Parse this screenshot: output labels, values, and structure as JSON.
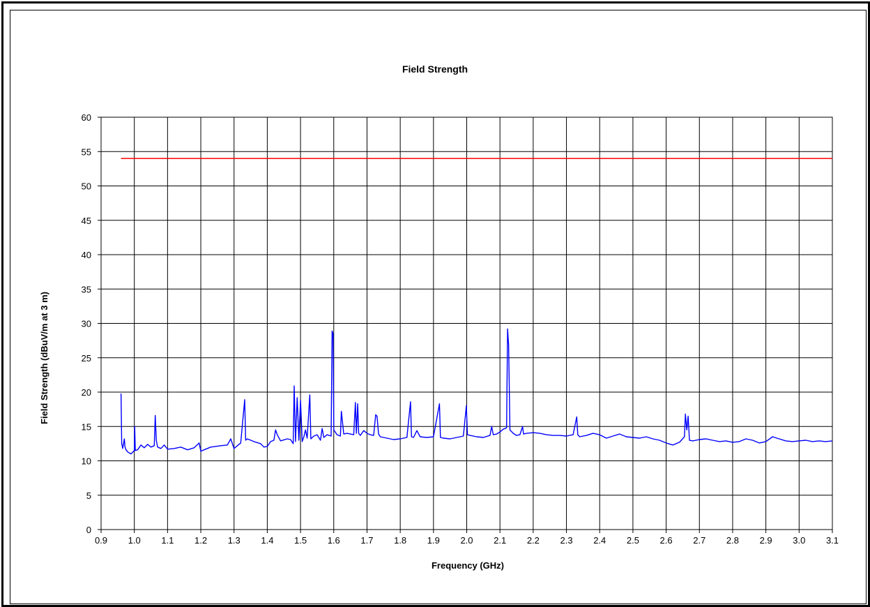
{
  "chart_data": {
    "type": "line",
    "title": "Field Strength",
    "xlabel": "Frequency (GHz)",
    "ylabel": "Field Strength (dBuV/m at 3 m)",
    "xlim": [
      0.9,
      3.1
    ],
    "ylim": [
      0,
      60
    ],
    "x_ticks": [
      "0.9",
      "1.0",
      "1.1",
      "1.2",
      "1.3",
      "1.4",
      "1.5",
      "1.6",
      "1.7",
      "1.8",
      "1.9",
      "2.0",
      "2.1",
      "2.2",
      "2.3",
      "2.4",
      "2.5",
      "2.6",
      "2.7",
      "2.8",
      "2.9",
      "3.0",
      "3.1"
    ],
    "y_ticks": [
      "0",
      "5",
      "10",
      "15",
      "20",
      "25",
      "30",
      "35",
      "40",
      "45",
      "50",
      "55",
      "60"
    ],
    "grid": true,
    "legend": "none",
    "colors": {
      "limit": "#ff0000",
      "measurement": "#0000ff"
    },
    "series": [
      {
        "role": "limit",
        "x": [
          0.96,
          3.1
        ],
        "y": [
          54,
          54
        ]
      },
      {
        "role": "measurement",
        "x": [
          0.96,
          0.962,
          0.965,
          0.97,
          0.972,
          0.975,
          0.98,
          0.99,
          1.0,
          1.001,
          1.003,
          1.01,
          1.02,
          1.03,
          1.04,
          1.05,
          1.06,
          1.063,
          1.066,
          1.07,
          1.08,
          1.09,
          1.1,
          1.12,
          1.14,
          1.16,
          1.18,
          1.195,
          1.2,
          1.21,
          1.23,
          1.26,
          1.28,
          1.29,
          1.3,
          1.31,
          1.32,
          1.328,
          1.332,
          1.335,
          1.34,
          1.36,
          1.38,
          1.39,
          1.4,
          1.41,
          1.42,
          1.425,
          1.43,
          1.44,
          1.46,
          1.47,
          1.478,
          1.481,
          1.485,
          1.49,
          1.495,
          1.5,
          1.505,
          1.51,
          1.515,
          1.52,
          1.528,
          1.531,
          1.54,
          1.55,
          1.56,
          1.565,
          1.57,
          1.58,
          1.592,
          1.595,
          1.598,
          1.6,
          1.61,
          1.62,
          1.623,
          1.63,
          1.64,
          1.65,
          1.66,
          1.665,
          1.668,
          1.672,
          1.675,
          1.68,
          1.69,
          1.7,
          1.71,
          1.72,
          1.726,
          1.73,
          1.735,
          1.74,
          1.76,
          1.78,
          1.8,
          1.82,
          1.831,
          1.834,
          1.84,
          1.85,
          1.86,
          1.88,
          1.9,
          1.918,
          1.921,
          1.93,
          1.95,
          1.97,
          1.99,
          1.999,
          2.002,
          2.01,
          2.03,
          2.05,
          2.07,
          2.075,
          2.08,
          2.09,
          2.1,
          2.11,
          2.12,
          2.123,
          2.126,
          2.13,
          2.14,
          2.15,
          2.16,
          2.168,
          2.171,
          2.18,
          2.2,
          2.22,
          2.24,
          2.26,
          2.28,
          2.3,
          2.32,
          2.331,
          2.334,
          2.34,
          2.36,
          2.38,
          2.4,
          2.42,
          2.44,
          2.46,
          2.48,
          2.5,
          2.52,
          2.54,
          2.56,
          2.58,
          2.6,
          2.62,
          2.64,
          2.655,
          2.658,
          2.662,
          2.666,
          2.67,
          2.68,
          2.7,
          2.72,
          2.74,
          2.76,
          2.78,
          2.8,
          2.82,
          2.84,
          2.86,
          2.88,
          2.9,
          2.92,
          2.94,
          2.96,
          2.98,
          3.0,
          3.02,
          3.04,
          3.06,
          3.08,
          3.1
        ],
        "y": [
          19.8,
          12.5,
          11.8,
          13.2,
          12.0,
          11.6,
          11.3,
          11.0,
          11.5,
          15.0,
          11.5,
          11.6,
          12.3,
          11.9,
          12.4,
          12.0,
          12.2,
          16.6,
          13.0,
          12.0,
          11.8,
          12.3,
          11.7,
          11.8,
          12.0,
          11.6,
          11.9,
          12.6,
          11.4,
          11.6,
          12.0,
          12.2,
          12.3,
          13.2,
          11.8,
          12.2,
          12.6,
          16.8,
          18.9,
          13.0,
          13.2,
          12.8,
          12.5,
          12.0,
          12.1,
          12.8,
          13.0,
          14.5,
          13.8,
          12.9,
          13.2,
          13.1,
          12.5,
          20.9,
          12.8,
          19.2,
          13.0,
          18.8,
          12.8,
          13.5,
          14.5,
          13.3,
          19.6,
          13.2,
          13.6,
          13.8,
          13.0,
          14.7,
          13.4,
          13.8,
          13.6,
          28.9,
          28.5,
          14.5,
          13.8,
          13.6,
          17.2,
          13.9,
          14.0,
          13.9,
          13.8,
          18.5,
          14.0,
          18.3,
          14.0,
          13.7,
          14.4,
          14.0,
          13.8,
          13.7,
          16.7,
          16.5,
          13.9,
          13.5,
          13.3,
          13.1,
          13.2,
          13.4,
          18.6,
          13.5,
          13.4,
          14.4,
          13.5,
          13.4,
          13.5,
          18.3,
          13.4,
          13.3,
          13.2,
          13.4,
          13.6,
          18.0,
          13.8,
          13.7,
          13.5,
          13.4,
          13.7,
          15.0,
          13.8,
          13.9,
          14.2,
          14.6,
          14.8,
          29.2,
          26.9,
          14.5,
          14.0,
          13.7,
          13.8,
          15.0,
          13.9,
          14.0,
          14.1,
          14.0,
          13.8,
          13.7,
          13.7,
          13.6,
          13.8,
          16.4,
          13.8,
          13.5,
          13.7,
          14.0,
          13.8,
          13.3,
          13.6,
          13.9,
          13.5,
          13.4,
          13.3,
          13.5,
          13.2,
          13.0,
          12.6,
          12.3,
          12.7,
          13.5,
          16.8,
          14.5,
          16.5,
          13.0,
          12.9,
          13.1,
          13.2,
          13.0,
          12.8,
          12.9,
          12.7,
          12.8,
          13.2,
          13.0,
          12.6,
          12.8,
          13.5,
          13.2,
          12.9,
          12.8,
          12.9,
          13.0,
          12.8,
          12.9,
          12.8,
          12.9
        ]
      }
    ]
  }
}
